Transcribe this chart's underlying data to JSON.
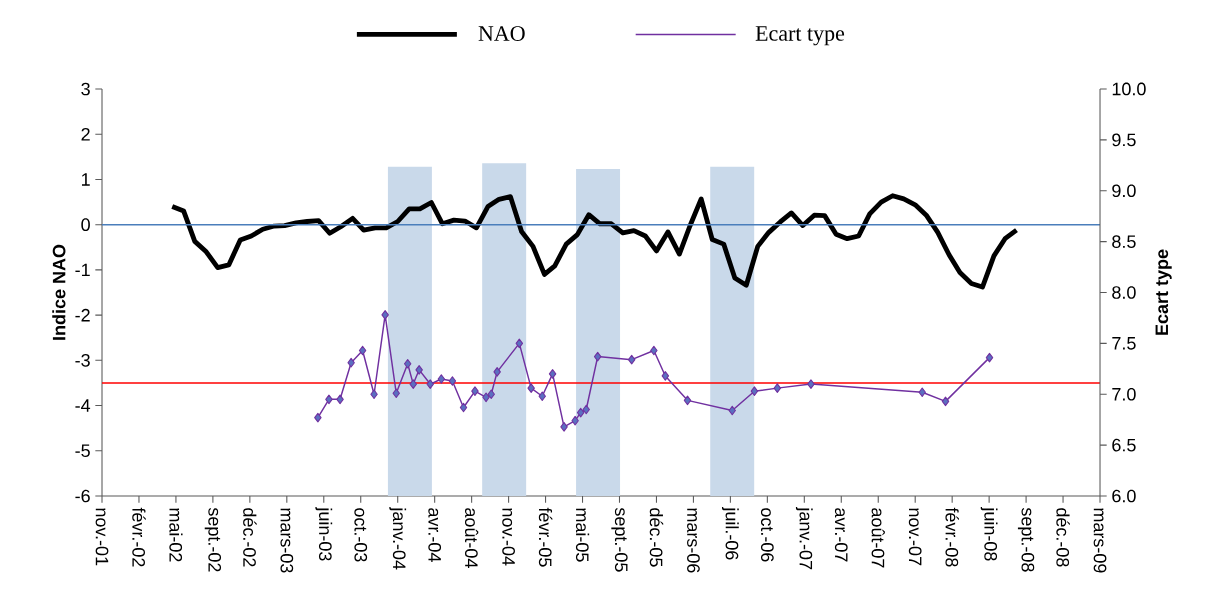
{
  "chart_data": {
    "type": "line",
    "ylabel": "Indice NAO",
    "y2label": "Ecart type",
    "legend": "top",
    "xlim": [
      "2001-11-06",
      "2009-03-29"
    ],
    "xticks": [
      {
        "value": "2001-11-06",
        "label": "nov.-01"
      },
      {
        "value": "2002-02-14",
        "label": "févr.-02"
      },
      {
        "value": "2002-05-25",
        "label": "mai-02"
      },
      {
        "value": "2002-09-02",
        "label": "sept.-02"
      },
      {
        "value": "2002-12-11",
        "label": "déc.-02"
      },
      {
        "value": "2003-03-21",
        "label": "mars-03"
      },
      {
        "value": "2003-06-29",
        "label": "juin-03"
      },
      {
        "value": "2003-10-07",
        "label": "oct.-03"
      },
      {
        "value": "2004-01-15",
        "label": "janv.-04"
      },
      {
        "value": "2004-04-24",
        "label": "avr.-04"
      },
      {
        "value": "2004-08-02",
        "label": "août-04"
      },
      {
        "value": "2004-11-10",
        "label": "nov.-04"
      },
      {
        "value": "2005-02-18",
        "label": "févr.-05"
      },
      {
        "value": "2005-05-29",
        "label": "mai-05"
      },
      {
        "value": "2005-09-06",
        "label": "sept.-05"
      },
      {
        "value": "2005-12-15",
        "label": "déc.-05"
      },
      {
        "value": "2006-03-25",
        "label": "mars-06"
      },
      {
        "value": "2006-07-03",
        "label": "juil.-06"
      },
      {
        "value": "2006-10-11",
        "label": "oct.-06"
      },
      {
        "value": "2007-01-19",
        "label": "janv.-07"
      },
      {
        "value": "2007-04-29",
        "label": "avr.-07"
      },
      {
        "value": "2007-08-07",
        "label": "août-07"
      },
      {
        "value": "2007-11-15",
        "label": "nov.-07"
      },
      {
        "value": "2008-02-23",
        "label": "févr.-08"
      },
      {
        "value": "2008-06-02",
        "label": "juin-08"
      },
      {
        "value": "2008-09-10",
        "label": "sept.-08"
      },
      {
        "value": "2008-12-19",
        "label": "déc.-08"
      },
      {
        "value": "2009-03-29",
        "label": "mars-09"
      }
    ],
    "ylim": [
      -6,
      3
    ],
    "yticks": [
      -6,
      -5,
      -4,
      -3,
      -2,
      -1,
      0,
      1,
      2,
      3
    ],
    "y2lim": [
      6,
      10
    ],
    "y2ticks": [
      {
        "value": 6,
        "label": "6.0"
      },
      {
        "value": 6.5,
        "label": "6.5"
      },
      {
        "value": 7,
        "label": "7.0"
      },
      {
        "value": 7.5,
        "label": "7.5"
      },
      {
        "value": 8,
        "label": "8.0"
      },
      {
        "value": 8.5,
        "label": "8.5"
      },
      {
        "value": 9,
        "label": "9.0"
      },
      {
        "value": 9.5,
        "label": "9.5"
      },
      {
        "value": 10,
        "label": "10.0"
      }
    ],
    "ref_lines": [
      {
        "axis": "y",
        "value": 0,
        "color": "#4a7ebb"
      },
      {
        "axis": "y",
        "value": -3.5,
        "color": "#ff0000"
      }
    ],
    "series": [
      {
        "type": "bar",
        "color": "#c9d9ea",
        "x": [
          "2004-02-17",
          "2004-10-29",
          "2005-07-10",
          "2006-07-08"
        ],
        "base": [
          -6,
          -6,
          -6,
          -6
        ],
        "values": [
          7.28,
          7.36,
          7.23,
          7.28
        ]
      },
      {
        "name": "NAO",
        "color": "#000000",
        "marker": "none",
        "x": [
          "2002-05-15",
          "2002-06-15",
          "2002-07-15",
          "2002-08-15",
          "2002-09-15",
          "2002-10-15",
          "2002-11-15",
          "2002-12-15",
          "2003-01-15",
          "2003-02-15",
          "2003-03-15",
          "2003-04-15",
          "2003-05-15",
          "2003-06-15",
          "2003-07-15",
          "2003-08-15",
          "2003-09-15",
          "2003-10-15",
          "2003-11-15",
          "2003-12-15",
          "2004-01-15",
          "2004-02-15",
          "2004-03-15",
          "2004-04-15",
          "2004-05-15",
          "2004-06-15",
          "2004-07-15",
          "2004-08-15",
          "2004-09-15",
          "2004-10-15",
          "2004-11-15",
          "2004-12-15",
          "2005-01-15",
          "2005-02-15",
          "2005-03-15",
          "2005-04-15",
          "2005-05-15",
          "2005-06-15",
          "2005-07-15",
          "2005-08-15",
          "2005-09-15",
          "2005-10-15",
          "2005-11-15",
          "2005-12-15",
          "2006-01-15",
          "2006-02-15",
          "2006-03-15",
          "2006-04-15",
          "2006-05-15",
          "2006-06-15",
          "2006-07-15",
          "2006-08-15",
          "2006-09-15",
          "2006-10-15",
          "2006-11-15",
          "2006-12-15",
          "2007-01-15",
          "2007-02-15",
          "2007-03-15",
          "2007-04-15",
          "2007-05-15",
          "2007-06-15",
          "2007-07-15",
          "2007-08-15",
          "2007-09-15",
          "2007-10-15",
          "2007-11-15",
          "2007-12-15",
          "2008-01-15",
          "2008-02-15",
          "2008-03-15",
          "2008-04-15",
          "2008-05-15",
          "2008-06-15",
          "2008-07-15",
          "2008-08-15"
        ],
        "values": [
          0.4,
          0.3,
          -0.37,
          -0.6,
          -0.95,
          -0.89,
          -0.34,
          -0.25,
          -0.1,
          -0.03,
          -0.02,
          0.04,
          0.07,
          0.09,
          -0.19,
          -0.04,
          0.14,
          -0.12,
          -0.07,
          -0.07,
          0.07,
          0.35,
          0.35,
          0.49,
          0.02,
          0.1,
          0.08,
          -0.07,
          0.4,
          0.56,
          0.62,
          -0.15,
          -0.48,
          -1.1,
          -0.91,
          -0.43,
          -0.22,
          0.22,
          0.02,
          0.02,
          -0.18,
          -0.13,
          -0.25,
          -0.58,
          -0.16,
          -0.65,
          -0.04,
          0.57,
          -0.33,
          -0.43,
          -1.18,
          -1.34,
          -0.48,
          -0.17,
          0.06,
          0.26,
          -0.02,
          0.21,
          0.2,
          -0.21,
          -0.31,
          -0.25,
          0.24,
          0.5,
          0.64,
          0.57,
          0.44,
          0.21,
          -0.17,
          -0.67,
          -1.06,
          -1.3,
          -1.38,
          -0.69,
          -0.31,
          -0.12
        ]
      },
      {
        "name": "Ecart type",
        "axis": "y2",
        "color": "#7030a0",
        "marker": "diamond",
        "x": [
          "2003-06-13",
          "2003-07-13",
          "2003-08-12",
          "2003-09-11",
          "2003-10-12",
          "2003-11-12",
          "2003-12-12",
          "2004-01-11",
          "2004-02-11",
          "2004-02-26",
          "2004-03-13",
          "2004-04-12",
          "2004-05-12",
          "2004-06-11",
          "2004-07-11",
          "2004-08-11",
          "2004-09-10",
          "2004-09-24",
          "2004-10-10",
          "2004-12-09",
          "2005-01-10",
          "2005-02-09",
          "2005-03-09",
          "2005-04-09",
          "2005-05-09",
          "2005-05-24",
          "2005-06-08",
          "2005-07-09",
          "2005-10-09",
          "2005-12-08",
          "2006-01-08",
          "2006-03-09",
          "2006-07-08",
          "2006-09-06",
          "2006-11-07",
          "2007-02-06",
          "2007-12-04",
          "2008-02-05",
          "2008-06-03"
        ],
        "values": [
          6.77,
          6.95,
          6.95,
          7.31,
          7.43,
          7.0,
          7.78,
          7.01,
          7.3,
          7.1,
          7.24,
          7.1,
          7.15,
          7.13,
          6.87,
          7.03,
          6.97,
          7.0,
          7.22,
          7.5,
          7.06,
          6.98,
          7.2,
          6.68,
          6.74,
          6.82,
          6.85,
          7.37,
          7.34,
          7.43,
          7.18,
          6.94,
          6.84,
          7.03,
          7.06,
          7.1,
          7.02,
          6.93,
          7.36
        ]
      }
    ]
  }
}
